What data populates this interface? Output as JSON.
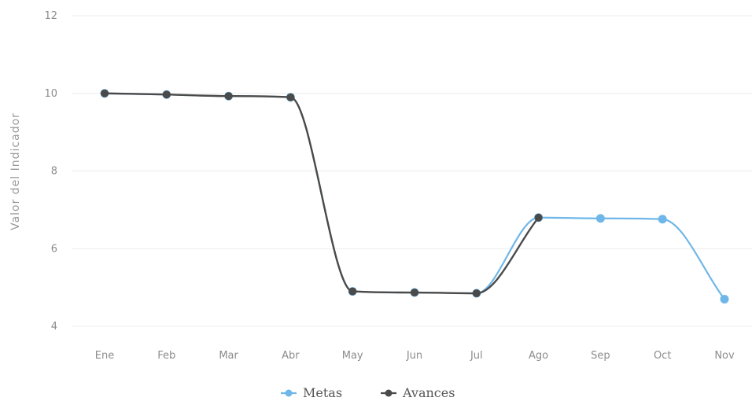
{
  "chart_data": {
    "type": "line",
    "title": "",
    "xlabel": "",
    "ylabel": "Valor del Indicador",
    "categories": [
      "Ene",
      "Feb",
      "Mar",
      "Abr",
      "May",
      "Jun",
      "Jul",
      "Ago",
      "Sep",
      "Oct",
      "Nov"
    ],
    "ylim": [
      4,
      12
    ],
    "yticks": [
      4,
      6,
      8,
      10,
      12
    ],
    "grid": true,
    "legend": "bottom",
    "series": [
      {
        "name": "Metas",
        "color": "#6fb7e8",
        "values": [
          10,
          9.97,
          9.93,
          9.9,
          4.9,
          4.87,
          4.85,
          6.8,
          6.78,
          6.76,
          4.7
        ]
      },
      {
        "name": "Avances",
        "color": "#4a4a4a",
        "values": [
          10,
          9.97,
          9.93,
          9.9,
          4.9,
          4.87,
          4.85,
          6.8,
          null,
          null,
          null
        ]
      }
    ]
  }
}
